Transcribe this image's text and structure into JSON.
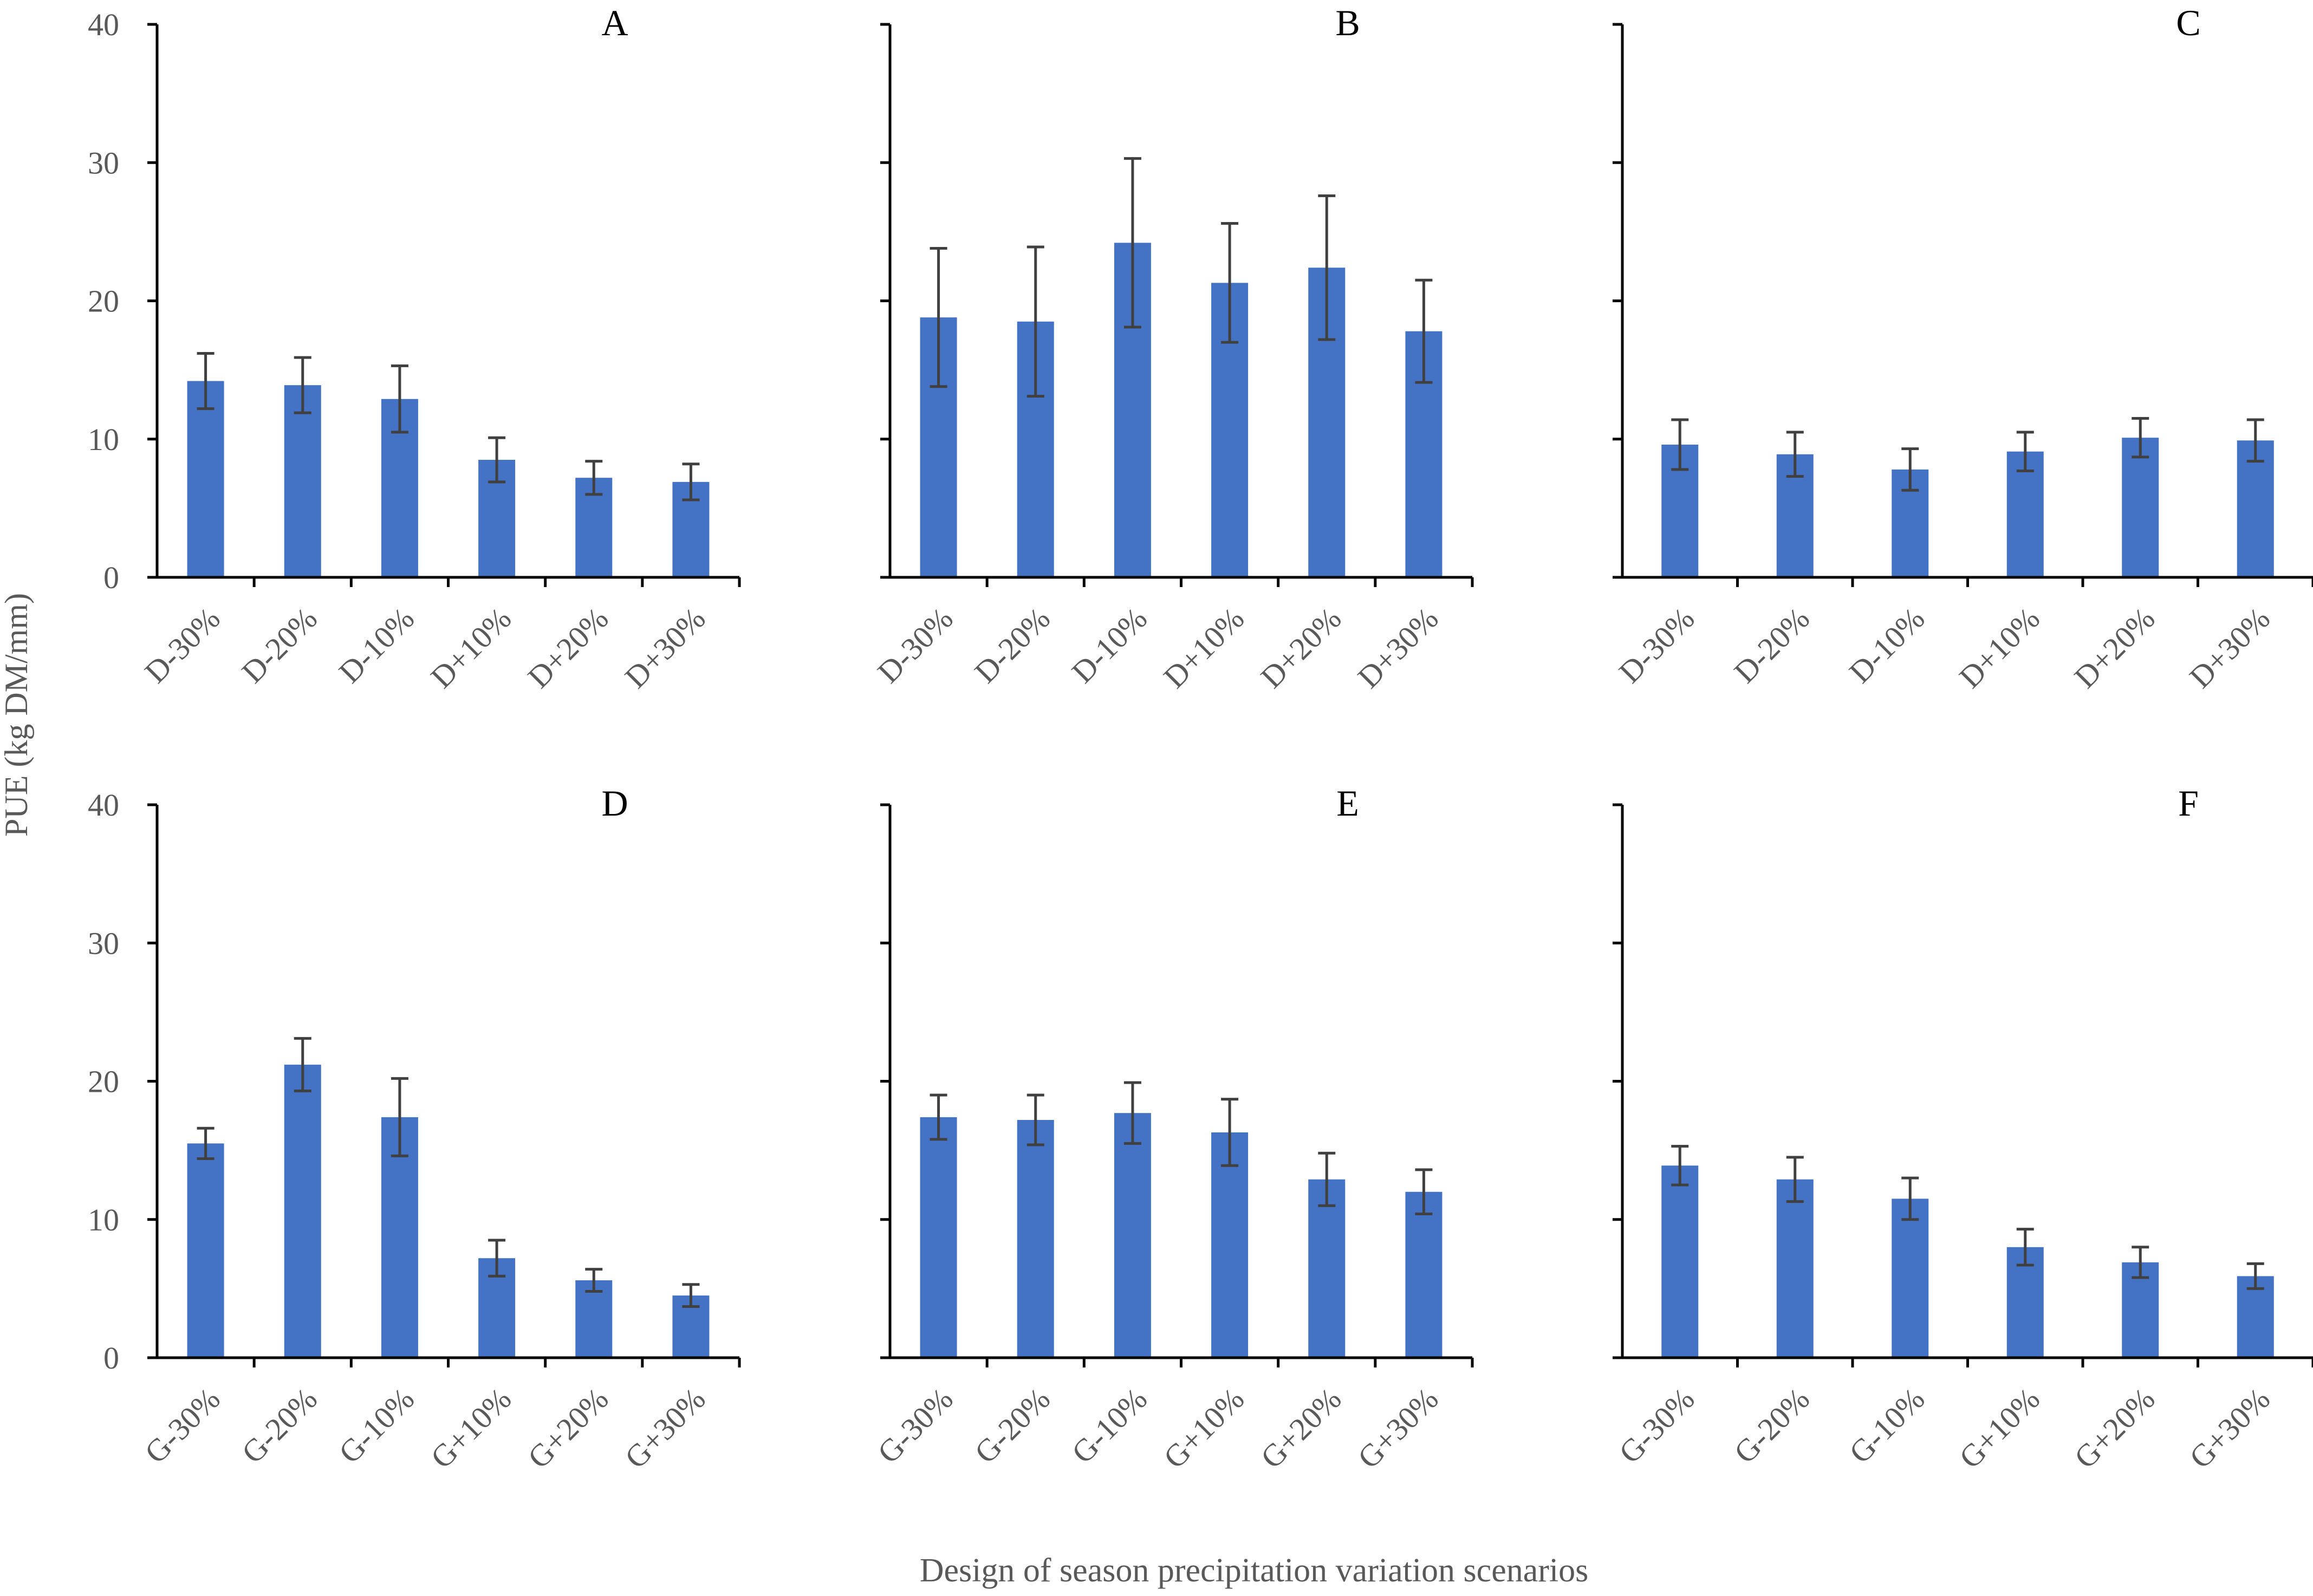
{
  "figure": {
    "ylabel": "PUE (kg DM/mm)",
    "xlabel": "Design of season precipitation variation scenarios",
    "bar_color": "#4472C4",
    "axis_color": "#000000",
    "errorbar_color": "#404040",
    "text_color": "#595959"
  },
  "chart_data": [
    {
      "type": "bar",
      "panel": "A",
      "title": "A",
      "categories": [
        "D-30%",
        "D-20%",
        "D-10%",
        "D+10%",
        "D+20%",
        "D+30%"
      ],
      "values": [
        14.2,
        13.9,
        12.9,
        8.5,
        7.2,
        6.9
      ],
      "error": [
        2.0,
        2.0,
        2.4,
        1.6,
        1.2,
        1.3
      ],
      "ylim": [
        0,
        40
      ],
      "yticks": [
        0,
        10,
        20,
        30,
        40
      ]
    },
    {
      "type": "bar",
      "panel": "B",
      "title": "B",
      "categories": [
        "D-30%",
        "D-20%",
        "D-10%",
        "D+10%",
        "D+20%",
        "D+30%"
      ],
      "values": [
        18.8,
        18.5,
        24.2,
        21.3,
        22.4,
        17.8
      ],
      "error": [
        5.0,
        5.4,
        6.1,
        4.3,
        5.2,
        3.7
      ],
      "ylim": [
        0,
        40
      ],
      "yticks": [
        0,
        10,
        20,
        30,
        40
      ]
    },
    {
      "type": "bar",
      "panel": "C",
      "title": "C",
      "categories": [
        "D-30%",
        "D-20%",
        "D-10%",
        "D+10%",
        "D+20%",
        "D+30%"
      ],
      "values": [
        9.6,
        8.9,
        7.8,
        9.1,
        10.1,
        9.9
      ],
      "error": [
        1.8,
        1.6,
        1.5,
        1.4,
        1.4,
        1.5
      ],
      "ylim": [
        0,
        40
      ],
      "yticks": [
        0,
        10,
        20,
        30,
        40
      ]
    },
    {
      "type": "bar",
      "panel": "D",
      "title": "D",
      "categories": [
        "G-30%",
        "G-20%",
        "G-10%",
        "G+10%",
        "G+20%",
        "G+30%"
      ],
      "values": [
        15.5,
        21.2,
        17.4,
        7.2,
        5.6,
        4.5
      ],
      "error": [
        1.1,
        1.9,
        2.8,
        1.3,
        0.8,
        0.8
      ],
      "ylim": [
        0,
        40
      ],
      "yticks": [
        0,
        10,
        20,
        30,
        40
      ]
    },
    {
      "type": "bar",
      "panel": "E",
      "title": "E",
      "categories": [
        "G-30%",
        "G-20%",
        "G-10%",
        "G+10%",
        "G+20%",
        "G+30%"
      ],
      "values": [
        17.4,
        17.2,
        17.7,
        16.3,
        12.9,
        12.0
      ],
      "error": [
        1.6,
        1.8,
        2.2,
        2.4,
        1.9,
        1.6
      ],
      "ylim": [
        0,
        40
      ],
      "yticks": [
        0,
        10,
        20,
        30,
        40
      ]
    },
    {
      "type": "bar",
      "panel": "F",
      "title": "F",
      "categories": [
        "G-30%",
        "G-20%",
        "G-10%",
        "G+10%",
        "G+20%",
        "G+30%"
      ],
      "values": [
        13.9,
        12.9,
        11.5,
        8.0,
        6.9,
        5.9
      ],
      "error": [
        1.4,
        1.6,
        1.5,
        1.3,
        1.1,
        0.9
      ],
      "ylim": [
        0,
        40
      ],
      "yticks": [
        0,
        10,
        20,
        30,
        40
      ]
    }
  ]
}
